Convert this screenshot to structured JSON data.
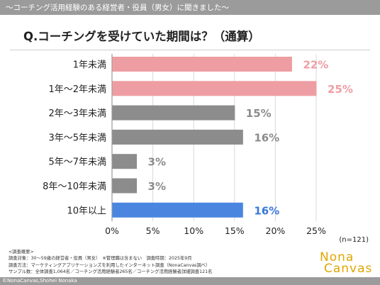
{
  "header": {
    "text": "～コーチング活用経験のある経営者・役員（男女）に聞きました～"
  },
  "chart_data": {
    "type": "bar",
    "orientation": "horizontal",
    "title": "Q.コーチングを受けていた期間は？（通算）",
    "categories": [
      "1年未満",
      "1年～2年未満",
      "2年～3年未満",
      "3年～5年未満",
      "5年～7年未満",
      "8年～10年未満",
      "10年以上"
    ],
    "values": [
      22,
      25,
      15,
      16,
      3,
      3,
      16
    ],
    "value_labels": [
      "22%",
      "25%",
      "15%",
      "16%",
      "3%",
      "3%",
      "16%"
    ],
    "bar_colors": [
      "#ee9ea3",
      "#ee9ea3",
      "#8c8c8c",
      "#8c8c8c",
      "#8c8c8c",
      "#8c8c8c",
      "#4a86e0"
    ],
    "label_colors": [
      "#ee9ea3",
      "#ee9ea3",
      "#8c8c8c",
      "#8c8c8c",
      "#8c8c8c",
      "#8c8c8c",
      "#3b78d8"
    ],
    "x_ticks": [
      "0%",
      "5%",
      "10%",
      "15%",
      "20%",
      "25%"
    ],
    "x_tick_values": [
      0,
      5,
      10,
      15,
      20,
      25
    ],
    "xlim": [
      0,
      25
    ],
    "grid": true,
    "n_label": "(n=121)"
  },
  "survey": {
    "lines": [
      "<調査概要>",
      "調査対象：30～59歳の経営者・役員（男女）　※管理職は含まない　調査時期：2025年9月",
      "調査方法：マーケティングアプリケーションズを利用したインターネット調査（NonaCanvas調べ）",
      "サンプル数：全体調査1,064名／コーチング活用経験者265名／コーチング活用経験者詳細調査121名"
    ]
  },
  "footer": {
    "copyright": "©NonaCanvas,Shohei Nonaka"
  },
  "logo": {
    "line1": "Nona",
    "line2": "Canvas"
  }
}
